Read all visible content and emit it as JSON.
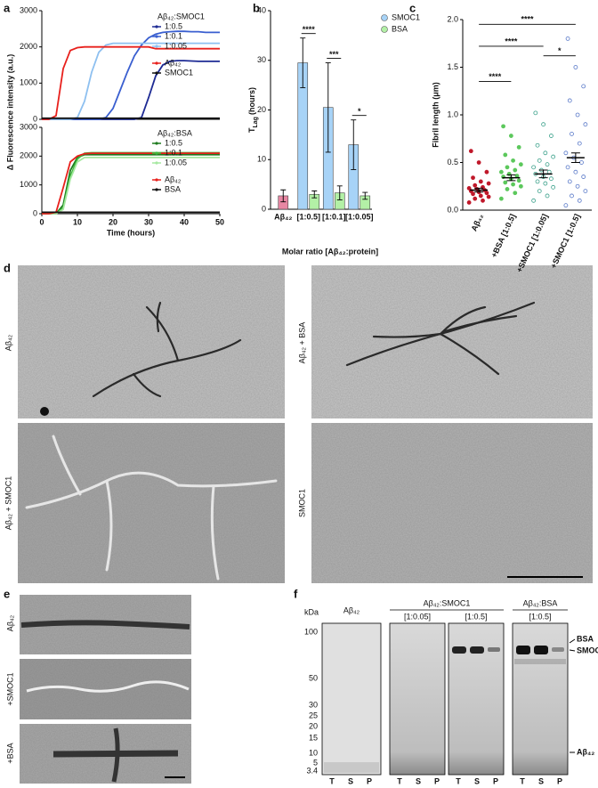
{
  "panel_labels": [
    "a",
    "b",
    "c",
    "d",
    "e",
    "f"
  ],
  "chart_data": [
    {
      "type": "line",
      "ylabel": "Δ Fluorescence intensity (a.u.)",
      "legend_title": "Aβ₄₂:SMOC1",
      "x": [
        0,
        2,
        4,
        6,
        8,
        10,
        12,
        14,
        16,
        18,
        20,
        22,
        24,
        26,
        28,
        30,
        32,
        34,
        36,
        38,
        40,
        42,
        44,
        46,
        48,
        50
      ],
      "xlim": [
        0,
        50
      ],
      "ylim": [
        0,
        3000
      ],
      "yticks": [
        0,
        1000,
        2000,
        3000
      ],
      "series": [
        {
          "name": "1:0.5",
          "color": "#1d2a94",
          "values": [
            0,
            0,
            0,
            0,
            0,
            0,
            0,
            0,
            0,
            0,
            0,
            0,
            0,
            0,
            50,
            600,
            1200,
            1500,
            1600,
            1620,
            1620,
            1610,
            1600,
            1600,
            1600,
            1600
          ]
        },
        {
          "name": "1:0.1",
          "color": "#3a5fd0",
          "values": [
            0,
            0,
            0,
            0,
            0,
            0,
            0,
            0,
            0,
            50,
            300,
            800,
            1300,
            1750,
            2050,
            2250,
            2350,
            2400,
            2420,
            2430,
            2430,
            2420,
            2420,
            2400,
            2400,
            2400
          ]
        },
        {
          "name": "1:0.05",
          "color": "#8ec0f0",
          "values": [
            0,
            0,
            0,
            0,
            0,
            50,
            500,
            1300,
            1850,
            2050,
            2100,
            2100,
            2100,
            2100,
            2100,
            2100,
            2100,
            2100,
            2100,
            2100,
            2100,
            2100,
            2100,
            2100,
            2100,
            2100
          ]
        },
        {
          "name": "Aβ₄₂",
          "color": "#e8201c",
          "values": [
            0,
            0,
            100,
            1400,
            1900,
            1980,
            2000,
            2000,
            2000,
            2000,
            2000,
            2000,
            2000,
            2000,
            2000,
            2000,
            1950,
            1950,
            1950,
            1950,
            1950,
            1950,
            1950,
            1950,
            1950,
            1950
          ]
        },
        {
          "name": "SMOC1",
          "color": "#111111",
          "values": [
            30,
            30,
            30,
            30,
            30,
            30,
            30,
            30,
            30,
            30,
            30,
            30,
            30,
            30,
            30,
            30,
            30,
            30,
            30,
            30,
            30,
            30,
            30,
            30,
            30,
            30
          ]
        }
      ]
    },
    {
      "type": "line",
      "xlabel": "Time (hours)",
      "legend_title": "Aβ₄₂:BSA",
      "x": [
        0,
        2,
        4,
        6,
        8,
        10,
        12,
        14,
        16,
        18,
        20,
        22,
        24,
        26,
        28,
        30,
        32,
        34,
        36,
        38,
        40,
        42,
        44,
        46,
        48,
        50
      ],
      "xlim": [
        0,
        50
      ],
      "ylim": [
        0,
        3000
      ],
      "xticks": [
        0,
        10,
        20,
        30,
        40,
        50
      ],
      "yticks": [
        0,
        1000,
        2000,
        3000
      ],
      "series": [
        {
          "name": "1:0.5",
          "color": "#1e7b1e",
          "values": [
            0,
            0,
            0,
            300,
            1500,
            1950,
            2050,
            2050,
            2050,
            2050,
            2050,
            2050,
            2050,
            2050,
            2050,
            2050,
            2050,
            2050,
            2050,
            2050,
            2050,
            2050,
            2050,
            2050,
            2050,
            2050
          ]
        },
        {
          "name": "1:0.1",
          "color": "#3cba3c",
          "values": [
            0,
            0,
            0,
            200,
            1300,
            1900,
            2100,
            2120,
            2120,
            2120,
            2120,
            2120,
            2120,
            2120,
            2120,
            2120,
            2120,
            2120,
            2120,
            2120,
            2120,
            2120,
            2120,
            2120,
            2120,
            2120
          ]
        },
        {
          "name": "1:0.05",
          "color": "#a6e8a0",
          "values": [
            0,
            0,
            0,
            150,
            1200,
            1800,
            1950,
            1950,
            1950,
            1950,
            1950,
            1950,
            1950,
            1950,
            1950,
            1950,
            1950,
            1950,
            1950,
            1950,
            1950,
            1950,
            1950,
            1950,
            1950,
            1950
          ]
        },
        {
          "name": "Aβ₄₂",
          "color": "#e8201c",
          "values": [
            0,
            0,
            50,
            900,
            1800,
            2000,
            2080,
            2100,
            2100,
            2100,
            2100,
            2100,
            2100,
            2100,
            2100,
            2100,
            2100,
            2100,
            2100,
            2100,
            2100,
            2100,
            2100,
            2100,
            2100,
            2100
          ]
        },
        {
          "name": "BSA",
          "color": "#111111",
          "values": [
            50,
            50,
            50,
            50,
            50,
            50,
            50,
            50,
            50,
            50,
            50,
            50,
            50,
            50,
            50,
            50,
            50,
            50,
            50,
            50,
            50,
            50,
            50,
            50,
            50,
            50
          ]
        }
      ]
    },
    {
      "type": "bar",
      "ylabel": "T",
      "ylabel_subscript": "Lag",
      "ylabel_unit": "(hours)",
      "xlabel": "Molar ratio [Aβ₄₂:protein]",
      "categories": [
        "Aβ₄₂",
        "[1:0.5]",
        "[1:0.1]",
        "[1:0.05]"
      ],
      "ylim": [
        0,
        40
      ],
      "yticks": [
        0,
        10,
        20,
        30,
        40
      ],
      "significance": [
        null,
        "****",
        "***",
        "*"
      ],
      "series": [
        {
          "color": "#e887a3",
          "values": [
            2.7,
            null,
            null,
            null
          ],
          "errors": [
            1.2,
            null,
            null,
            null
          ]
        },
        {
          "name": "SMOC1",
          "color": "#a7d3f7",
          "values": [
            null,
            29.5,
            20.5,
            13
          ],
          "errors": [
            null,
            5,
            9,
            5
          ]
        },
        {
          "name": "BSA",
          "color": "#b3f0a6",
          "values": [
            null,
            3,
            3.3,
            2.7
          ],
          "errors": [
            null,
            0.7,
            1.4,
            0.7
          ]
        }
      ]
    },
    {
      "type": "strip",
      "ylabel": "Fibril length (μm)",
      "categories": [
        "Aβ₄₂",
        "+BSA [1:0.5]",
        "+SMOC1 [1:0.05]",
        "+SMOC1 [1:0.5]"
      ],
      "colors": [
        "#c0182a",
        "#5cc85c",
        "#3aa08a",
        "#5878c8"
      ],
      "filled": [
        true,
        true,
        false,
        false
      ],
      "ylim": [
        0,
        2
      ],
      "yticks": [
        {
          "value": 0,
          "label": "0.0"
        },
        {
          "value": 0.5,
          "label": "0.5"
        },
        {
          "value": 1,
          "label": "1.0"
        },
        {
          "value": 1.5,
          "label": "1.5"
        },
        {
          "value": 2,
          "label": "2.0"
        }
      ],
      "values": [
        [
          0.08,
          0.1,
          0.12,
          0.14,
          0.15,
          0.17,
          0.18,
          0.19,
          0.2,
          0.21,
          0.22,
          0.23,
          0.24,
          0.26,
          0.28,
          0.3,
          0.34,
          0.4,
          0.5,
          0.62
        ],
        [
          0.12,
          0.18,
          0.22,
          0.25,
          0.27,
          0.29,
          0.31,
          0.33,
          0.35,
          0.36,
          0.38,
          0.4,
          0.42,
          0.45,
          0.48,
          0.52,
          0.58,
          0.66,
          0.78,
          0.88
        ],
        [
          0.1,
          0.15,
          0.2,
          0.24,
          0.28,
          0.3,
          0.33,
          0.35,
          0.38,
          0.4,
          0.42,
          0.45,
          0.48,
          0.52,
          0.56,
          0.6,
          0.68,
          0.78,
          0.9,
          1.02
        ],
        [
          0.05,
          0.1,
          0.15,
          0.2,
          0.25,
          0.3,
          0.35,
          0.4,
          0.45,
          0.5,
          0.55,
          0.6,
          0.7,
          0.8,
          0.9,
          1.0,
          1.15,
          1.3,
          1.5,
          1.8
        ]
      ],
      "means": [
        0.21,
        0.34,
        0.38,
        0.55
      ],
      "errors": [
        0.02,
        0.03,
        0.04,
        0.05
      ],
      "significance": [
        "****",
        "****",
        "*",
        "****"
      ]
    }
  ],
  "micrographs_d": {
    "labels": [
      "Aβ₄₂",
      "Aβ₄₂ + BSA",
      "Aβ₄₂ + SMOC1",
      "SMOC1"
    ]
  },
  "micrographs_e": {
    "labels": [
      "Aβ₄₂",
      "+SMOC1",
      "+BSA"
    ]
  },
  "gel": {
    "unit": "kDa",
    "markers": [
      100,
      50,
      30,
      25,
      20,
      15,
      10,
      5,
      3.4
    ],
    "lanes": [
      "T",
      "S",
      "P"
    ],
    "group_1": "Aβ₄₂",
    "group_2": "Aβ₄₂:SMOC1",
    "group_2_ratios": [
      "[1:0.05]",
      "[1:0.5]"
    ],
    "group_3": "Aβ₄₂:BSA",
    "group_3_ratio": "[1:0.5]",
    "arrows": [
      "BSA",
      "SMOC1",
      "Aβ₄₂"
    ]
  }
}
